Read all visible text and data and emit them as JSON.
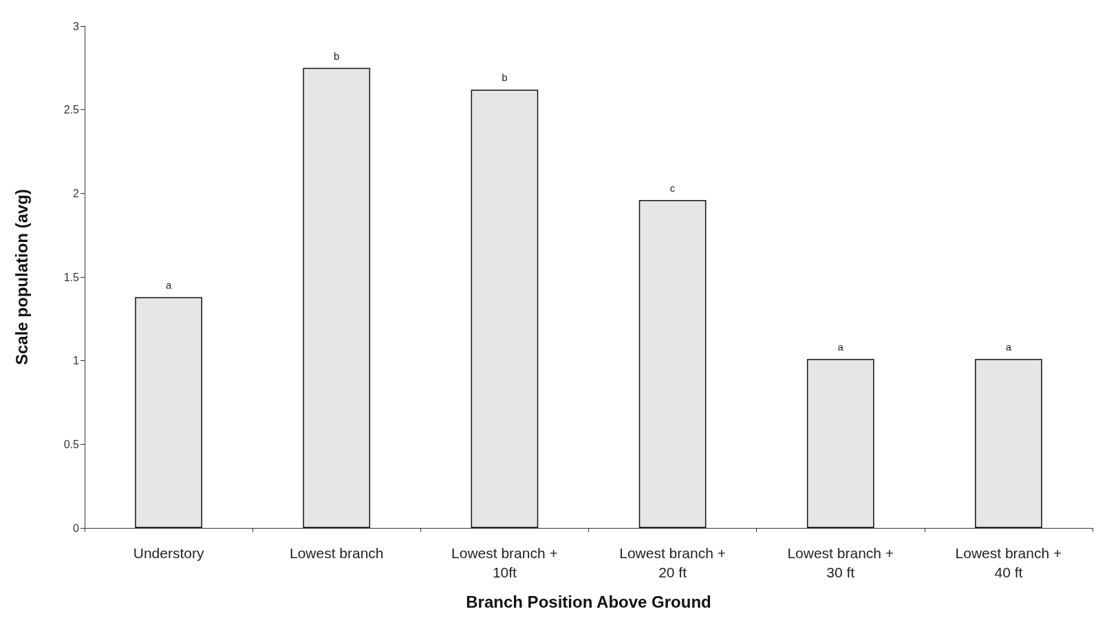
{
  "chart_data": {
    "type": "bar",
    "xlabel": "Branch Position Above Ground",
    "ylabel": "Scale population (avg)",
    "categories": [
      "Understory",
      "Lowest branch",
      "Lowest branch +\n10ft",
      "Lowest branch +\n20 ft",
      "Lowest branch +\n30 ft",
      "Lowest branch +\n40 ft"
    ],
    "values": [
      1.38,
      2.75,
      2.62,
      1.96,
      1.01,
      1.01
    ],
    "color": "#e6e6e6",
    "ylim": [
      0,
      3
    ],
    "yticks": [
      0,
      0.5,
      1,
      1.5,
      2,
      2.5,
      3
    ],
    "grid": false,
    "annotations": [
      {
        "text": "a",
        "x": "Understory",
        "y": 1.38
      },
      {
        "text": "b",
        "x": "Lowest branch",
        "y": 2.75
      },
      {
        "text": "b",
        "x": "Lowest branch +\n10ft",
        "y": 2.62
      },
      {
        "text": "c",
        "x": "Lowest branch +\n20 ft",
        "y": 1.96
      },
      {
        "text": "a",
        "x": "Lowest branch +\n30 ft",
        "y": 1.01
      },
      {
        "text": "a",
        "x": "Lowest branch +\n40 ft",
        "y": 1.01
      }
    ]
  }
}
